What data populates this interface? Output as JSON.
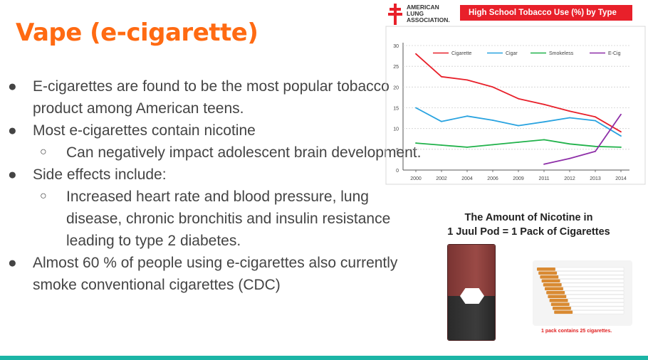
{
  "slide": {
    "title": "Vape (e-cigarette)",
    "bullets": [
      {
        "level": 1,
        "text": "E-cigarettes are found to be the most popular tobacco product among American teens."
      },
      {
        "level": 1,
        "text": "Most e-cigarettes contain nicotine"
      },
      {
        "level": 2,
        "text": "Can negatively impact adolescent brain development."
      },
      {
        "level": 1,
        "text": "Side effects include:"
      },
      {
        "level": 2,
        "text": "Increased heart rate and blood pressure, lung disease, chronic bronchitis and insulin resistance leading to type 2 diabetes."
      },
      {
        "level": 1,
        "text": "Almost 60 % of people using e-cigarettes also currently smoke conventional cigarettes (CDC)"
      }
    ],
    "bullet_glyphs": {
      "level1": "●",
      "level2": "○"
    },
    "accent_color": "#ff6a12",
    "footer_bar_color": "#1cb5a6"
  },
  "logo": {
    "line1": "AMERICAN",
    "line2": "LUNG",
    "line3": "ASSOCIATION.",
    "color": "#e8202a"
  },
  "chart_data": {
    "type": "line",
    "title": "High School Tobacco Use (%) by Type",
    "x": [
      "2000",
      "2002",
      "2004",
      "2006",
      "2009",
      "2011",
      "2012",
      "2013",
      "2014"
    ],
    "ylim": [
      0,
      30
    ],
    "yticks": [
      "0",
      "5",
      "10",
      "15",
      "20",
      "25",
      "30"
    ],
    "xlabel": "",
    "ylabel": "",
    "grid": true,
    "legend": "top",
    "series": [
      {
        "name": "Cigarette",
        "color": "#e8202a",
        "values": [
          28,
          22.5,
          21.7,
          20,
          17.2,
          15.8,
          14.2,
          12.8,
          9.2
        ]
      },
      {
        "name": "Cigar",
        "color": "#29a3e0",
        "values": [
          15,
          11.7,
          13,
          12,
          10.7,
          11.6,
          12.6,
          11.9,
          8.2
        ]
      },
      {
        "name": "Smokeless",
        "color": "#21b24b",
        "values": [
          6.5,
          6,
          5.5,
          6.1,
          6.7,
          7.3,
          6.3,
          5.7,
          5.5
        ]
      },
      {
        "name": "E-Cig",
        "color": "#8e2fa8",
        "values": [
          null,
          null,
          null,
          null,
          null,
          1.4,
          2.8,
          4.5,
          13.4
        ]
      }
    ]
  },
  "nicotine": {
    "heading_line1": "The Amount of Nicotine in",
    "heading_line2": "1 Juul Pod = 1 Pack of Cigarettes",
    "pack_caption": "1 pack contains 25 cigarettes."
  }
}
